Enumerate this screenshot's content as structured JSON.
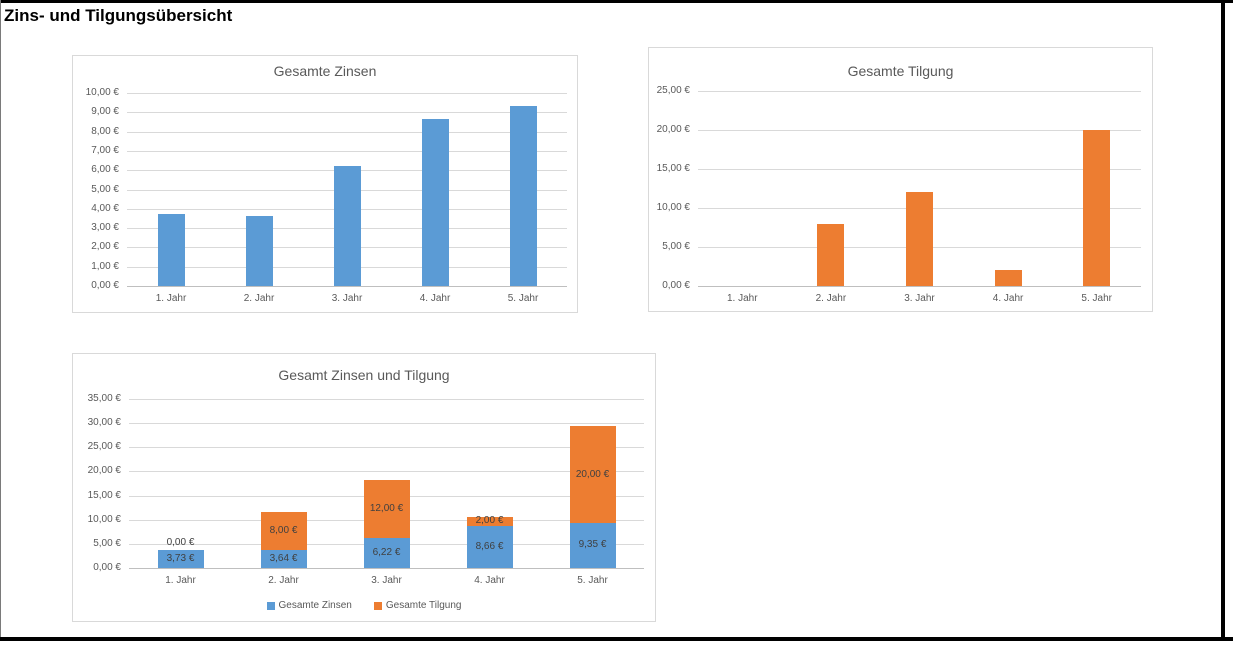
{
  "page": {
    "title": "Zins- und Tilgungsübersicht"
  },
  "colors": {
    "zinsen_blue": "#5B9BD5",
    "tilgung_orange": "#ED7D31",
    "chart_text_gray": "#595959",
    "gridline_gray": "#D9D9D9"
  },
  "chart_data": [
    {
      "type": "bar",
      "title": "Gesamte Zinsen",
      "categories": [
        "1. Jahr",
        "2. Jahr",
        "3. Jahr",
        "4. Jahr",
        "5. Jahr"
      ],
      "series": [
        {
          "name": "Gesamte Zinsen",
          "color": "#5B9BD5",
          "values": [
            3.73,
            3.64,
            6.22,
            8.66,
            9.35
          ]
        }
      ],
      "ylim": [
        0,
        10
      ],
      "ytick_step": 1,
      "yticks": [
        "0,00 €",
        "1,00 €",
        "2,00 €",
        "3,00 €",
        "4,00 €",
        "5,00 €",
        "6,00 €",
        "7,00 €",
        "8,00 €",
        "9,00 €",
        "10,00 €"
      ],
      "grid": true,
      "legend": false,
      "data_labels": false
    },
    {
      "type": "bar",
      "title": "Gesamte Tilgung",
      "categories": [
        "1. Jahr",
        "2. Jahr",
        "3. Jahr",
        "4. Jahr",
        "5. Jahr"
      ],
      "series": [
        {
          "name": "Gesamte Tilgung",
          "color": "#ED7D31",
          "values": [
            0,
            8,
            12,
            2,
            20
          ]
        }
      ],
      "ylim": [
        0,
        25
      ],
      "ytick_step": 5,
      "yticks": [
        "0,00 €",
        "5,00 €",
        "10,00 €",
        "15,00 €",
        "20,00 €",
        "25,00 €"
      ],
      "grid": true,
      "legend": false,
      "data_labels": false
    },
    {
      "type": "stacked-bar",
      "title": "Gesamt Zinsen und Tilgung",
      "categories": [
        "1. Jahr",
        "2. Jahr",
        "3. Jahr",
        "4. Jahr",
        "5. Jahr"
      ],
      "series": [
        {
          "name": "Gesamte Zinsen",
          "color": "#5B9BD5",
          "values": [
            3.73,
            3.64,
            6.22,
            8.66,
            9.35
          ],
          "labels": [
            "3,73 €",
            "3,64 €",
            "6,22 €",
            "8,66 €",
            "9,35 €"
          ]
        },
        {
          "name": "Gesamte Tilgung",
          "color": "#ED7D31",
          "values": [
            0,
            8,
            12,
            2,
            20
          ],
          "labels": [
            "0,00 €",
            "8,00 €",
            "12,00 €",
            "2,00 €",
            "20,00 €"
          ]
        }
      ],
      "ylim": [
        0,
        35
      ],
      "ytick_step": 5,
      "yticks": [
        "0,00 €",
        "5,00 €",
        "10,00 €",
        "15,00 €",
        "20,00 €",
        "25,00 €",
        "30,00 €",
        "35,00 €"
      ],
      "grid": true,
      "legend": true,
      "legend_position": "bottom",
      "data_labels": true
    }
  ]
}
